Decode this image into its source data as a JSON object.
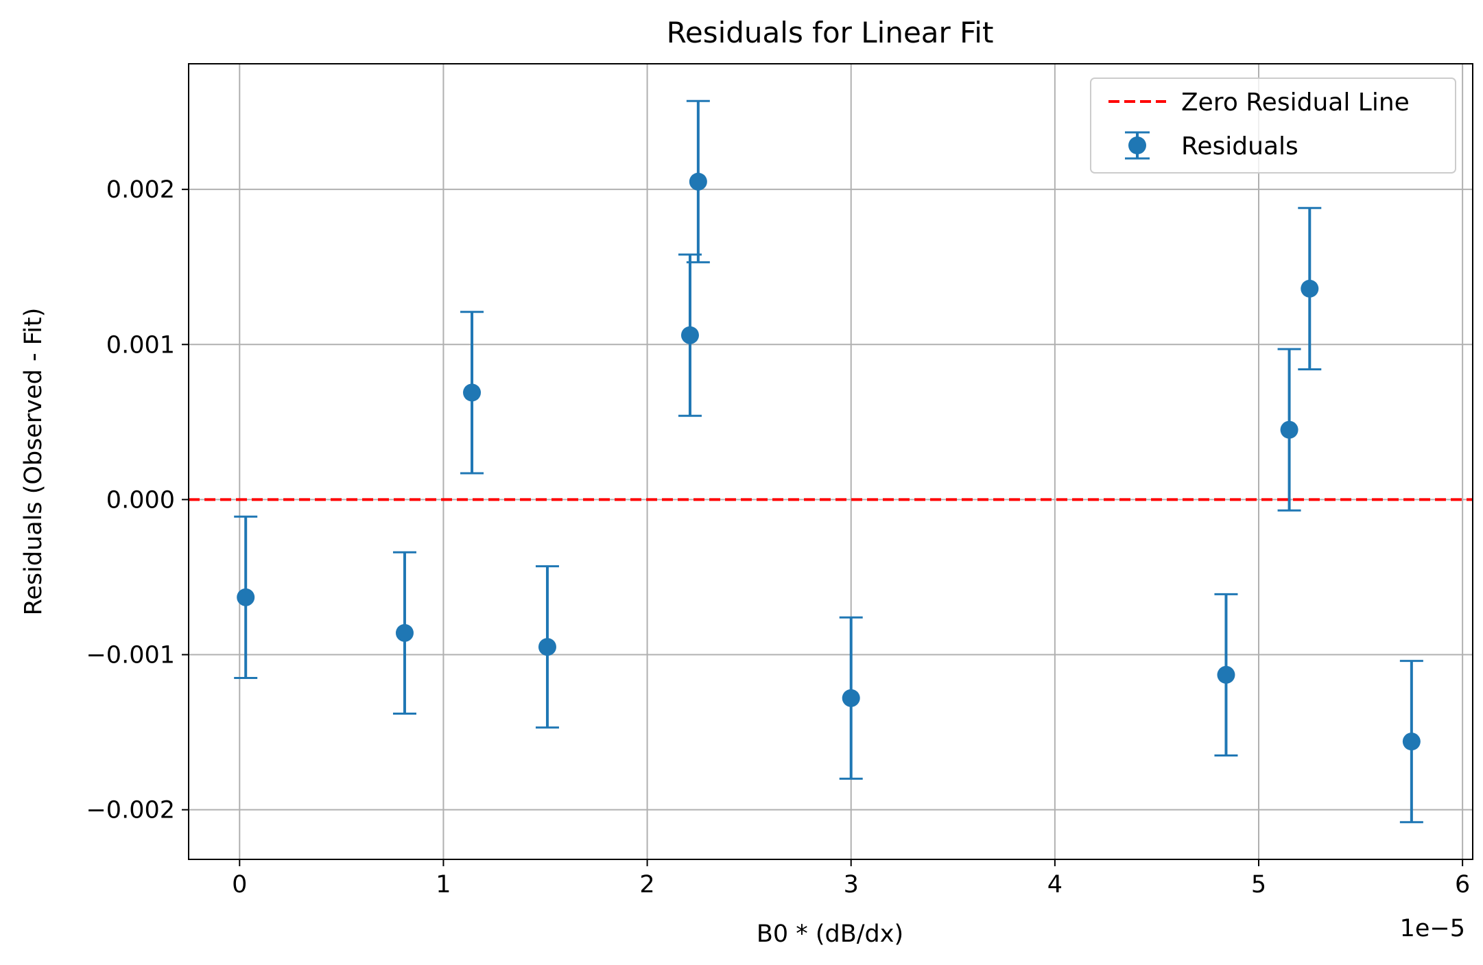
{
  "chart_data": {
    "type": "scatter",
    "title": "Residuals for Linear Fit",
    "xlabel": "B0 * (dB/dx)",
    "ylabel": "Residuals (Observed - Fit)",
    "x_offset_label": "1e−5",
    "xlim": [
      -2.5e-06,
      6.05e-05
    ],
    "ylim": [
      -0.00232,
      0.00281
    ],
    "x_ticks": [
      0,
      1e-05,
      2e-05,
      3e-05,
      4e-05,
      5e-05,
      6e-05
    ],
    "x_tick_labels": [
      "0",
      "1",
      "2",
      "3",
      "4",
      "5",
      "6"
    ],
    "y_ticks": [
      -0.002,
      -0.001,
      0.0,
      0.001,
      0.002
    ],
    "y_tick_labels": [
      "−0.002",
      "−0.001",
      "0.000",
      "0.001",
      "0.002"
    ],
    "grid": true,
    "legend_position": "top-right",
    "zero_line": {
      "name": "Zero Residual Line",
      "y": 0,
      "color": "#ff0000",
      "style": "dashed"
    },
    "series": [
      {
        "name": "Residuals",
        "color": "#1f77b4",
        "error": 0.00052,
        "x": [
          3e-07,
          8.1e-06,
          1.14e-05,
          1.51e-05,
          2.21e-05,
          2.25e-05,
          3e-05,
          4.84e-05,
          5.15e-05,
          5.25e-05,
          5.75e-05
        ],
        "y": [
          -0.00063,
          -0.00086,
          0.00069,
          -0.00095,
          0.00106,
          0.00205,
          -0.00128,
          -0.00113,
          0.00045,
          0.00136,
          -0.00156
        ]
      }
    ],
    "colors": {
      "series": "#1f77b4",
      "zero_line": "#ff0000",
      "grid": "#b0b0b0"
    }
  }
}
